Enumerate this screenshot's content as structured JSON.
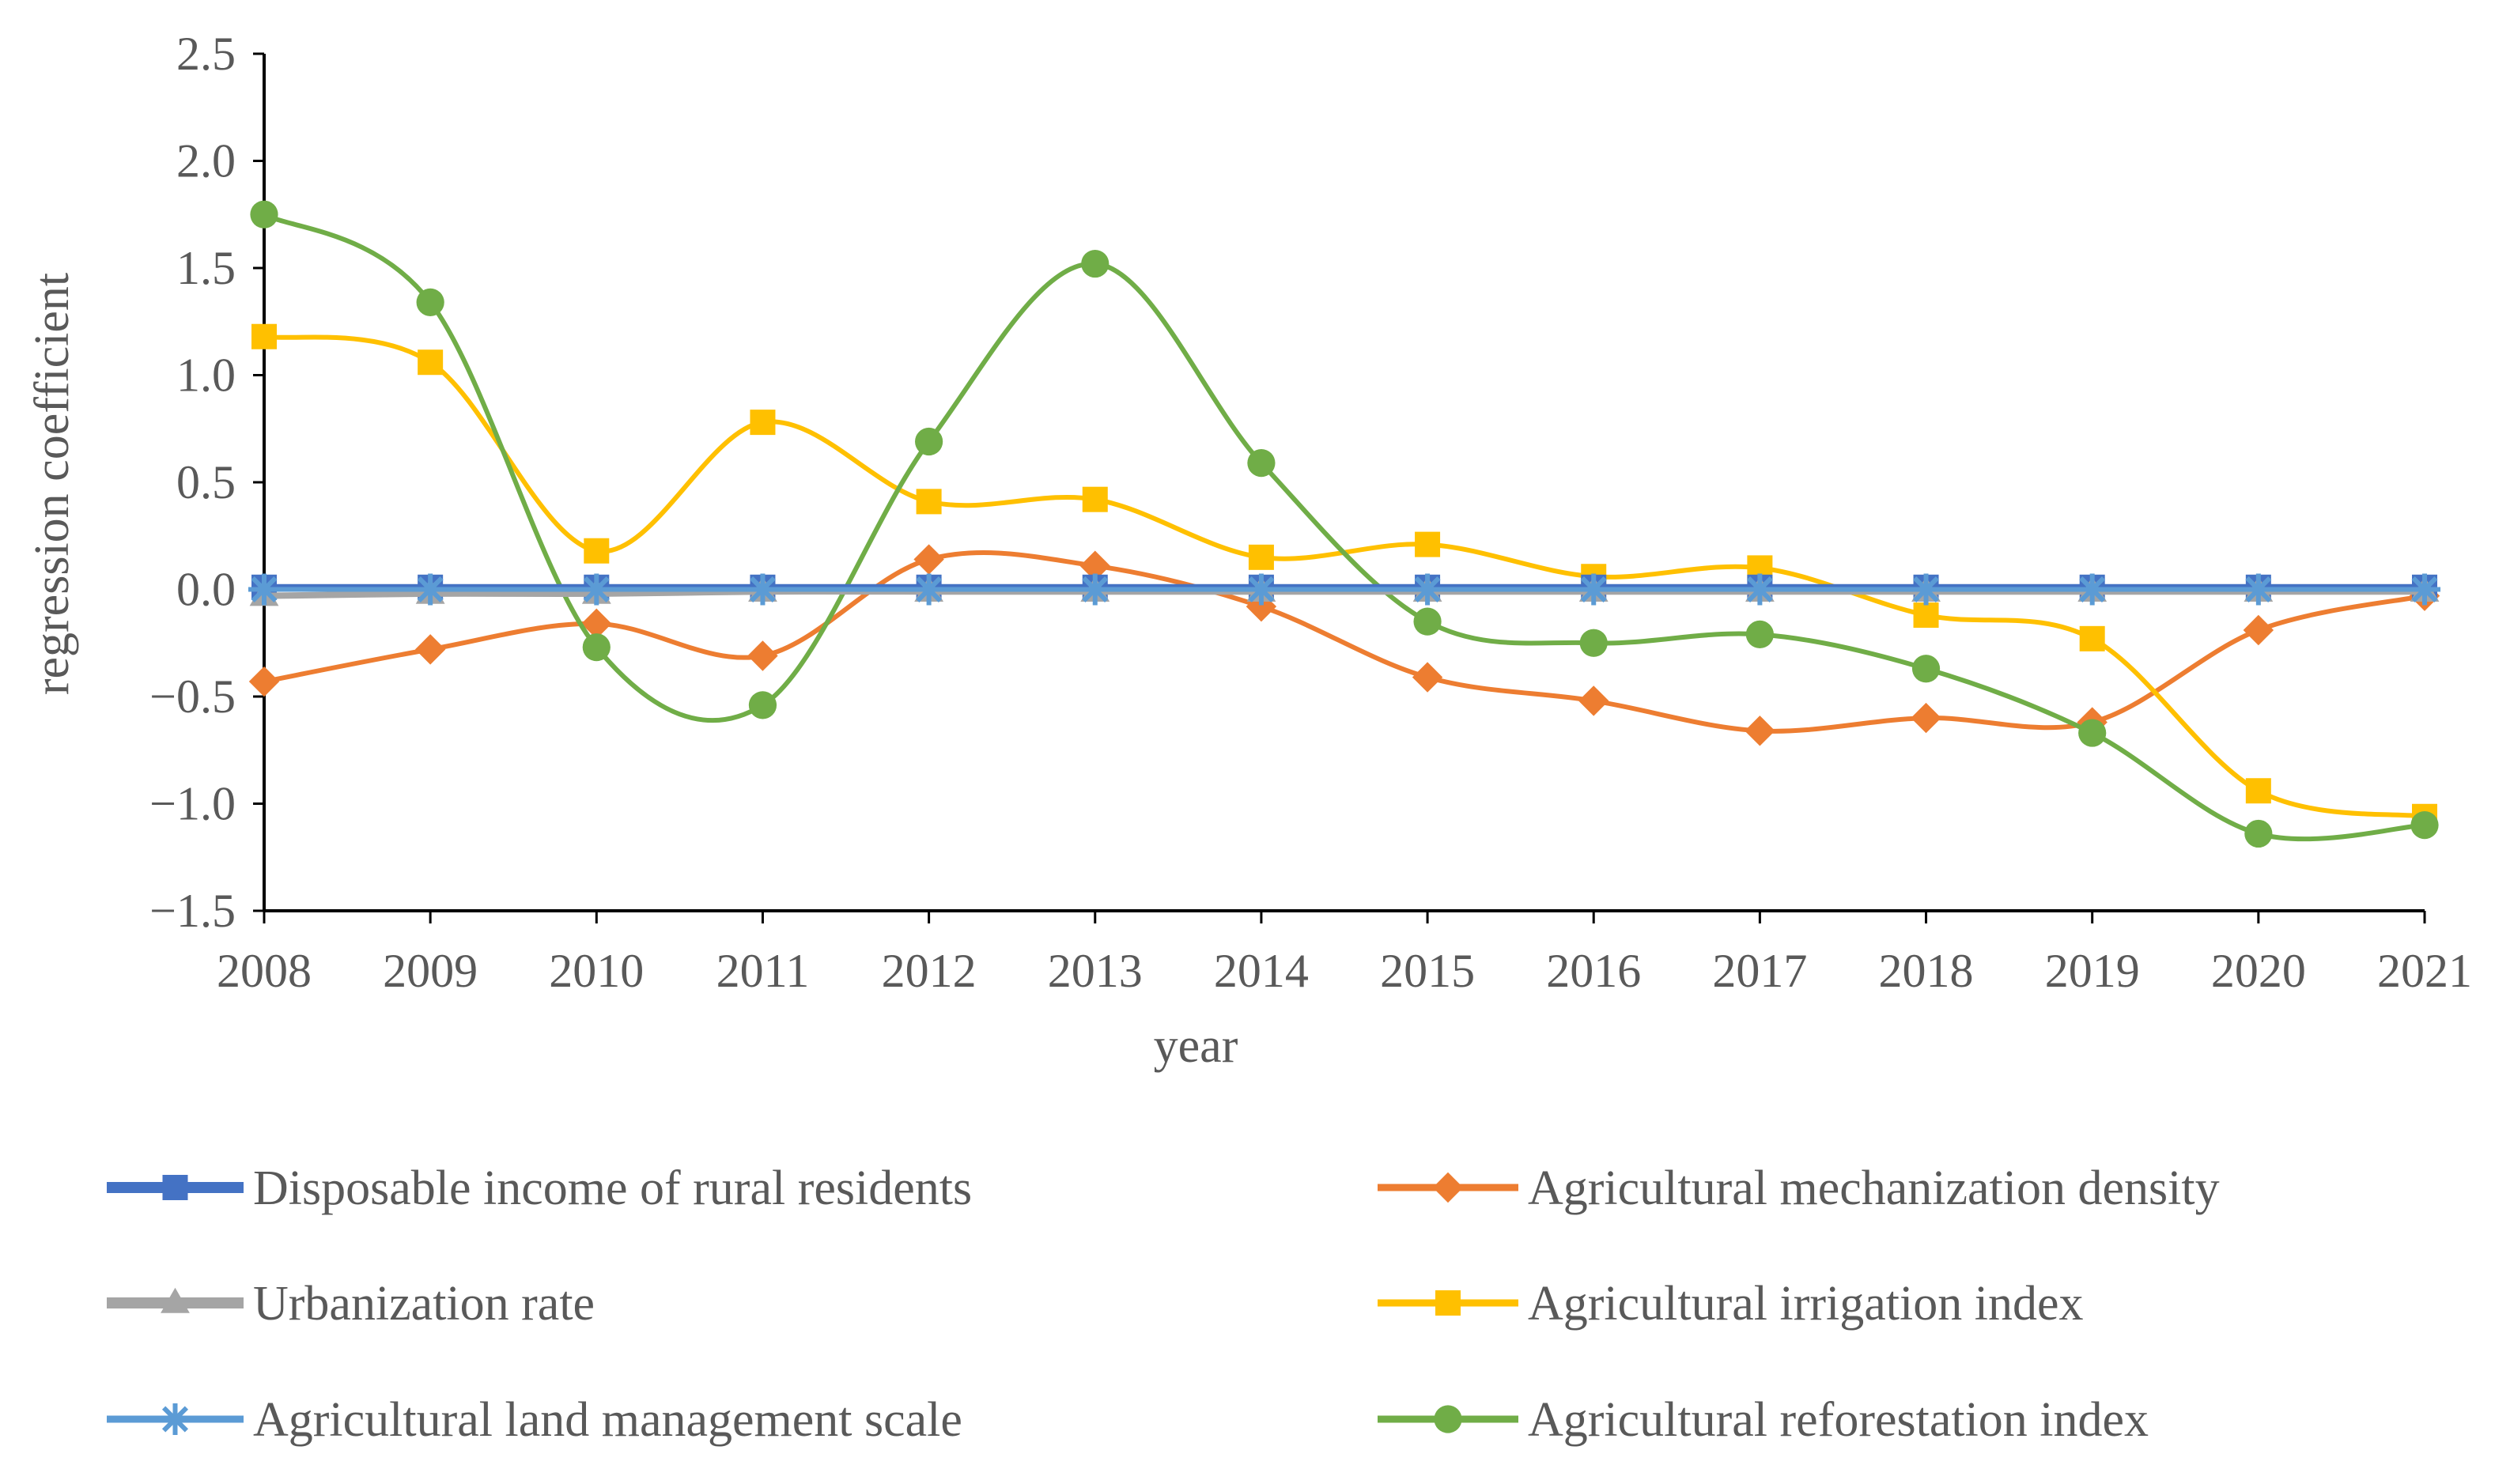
{
  "chart_data": {
    "type": "line",
    "title": "",
    "xlabel": "year",
    "ylabel": "regression coefficient",
    "categories": [
      "2008",
      "2009",
      "2010",
      "2011",
      "2012",
      "2013",
      "2014",
      "2015",
      "2016",
      "2017",
      "2018",
      "2019",
      "2020",
      "2021"
    ],
    "ylim": [
      -1.5,
      2.5
    ],
    "yticks": [
      2.5,
      2.0,
      1.5,
      1.0,
      0.5,
      0.0,
      -0.5,
      -1.0,
      -1.5
    ],
    "ytick_labels": [
      "2.5",
      "2.0",
      "1.5",
      "1.0",
      "0.5",
      "0.0",
      "−0.5",
      "−1.0",
      "−1.5"
    ],
    "legend_position": "bottom",
    "series": [
      {
        "name": "Disposable income of rural residents",
        "color": "#4472C4",
        "marker": "square",
        "values": [
          0.01,
          0.01,
          0.01,
          0.01,
          0.01,
          0.01,
          0.01,
          0.01,
          0.01,
          0.01,
          0.01,
          0.01,
          0.01,
          0.01
        ]
      },
      {
        "name": "Agricultural mechanization density",
        "color": "#ED7D31",
        "marker": "diamond",
        "values": [
          -0.43,
          -0.28,
          -0.16,
          -0.31,
          0.14,
          0.11,
          -0.08,
          -0.41,
          -0.52,
          -0.66,
          -0.6,
          -0.62,
          -0.19,
          -0.03
        ]
      },
      {
        "name": "Urbanization rate",
        "color": "#A5A5A5",
        "marker": "triangle",
        "values": [
          -0.03,
          -0.02,
          -0.02,
          -0.01,
          -0.01,
          -0.01,
          -0.01,
          -0.01,
          -0.01,
          -0.01,
          -0.01,
          -0.01,
          -0.01,
          -0.01
        ]
      },
      {
        "name": "Agricultural irrigation index",
        "color": "#FFC000",
        "marker": "square",
        "values": [
          1.18,
          1.06,
          0.18,
          0.78,
          0.41,
          0.42,
          0.15,
          0.21,
          0.06,
          0.1,
          -0.12,
          -0.23,
          -0.94,
          -1.06
        ]
      },
      {
        "name": "Agricultural land management scale",
        "color": "#5B9BD5",
        "marker": "asterisk",
        "values": [
          0.0,
          0.0,
          0.0,
          0.0,
          0.0,
          0.0,
          0.0,
          0.0,
          0.0,
          0.0,
          0.0,
          0.0,
          0.0,
          0.0
        ]
      },
      {
        "name": "Agricultural reforestation index",
        "color": "#70AD47",
        "marker": "circle",
        "values": [
          1.75,
          1.34,
          -0.27,
          -0.54,
          0.69,
          1.52,
          0.59,
          -0.15,
          -0.25,
          -0.21,
          -0.37,
          -0.67,
          -1.14,
          -1.1
        ]
      }
    ]
  }
}
